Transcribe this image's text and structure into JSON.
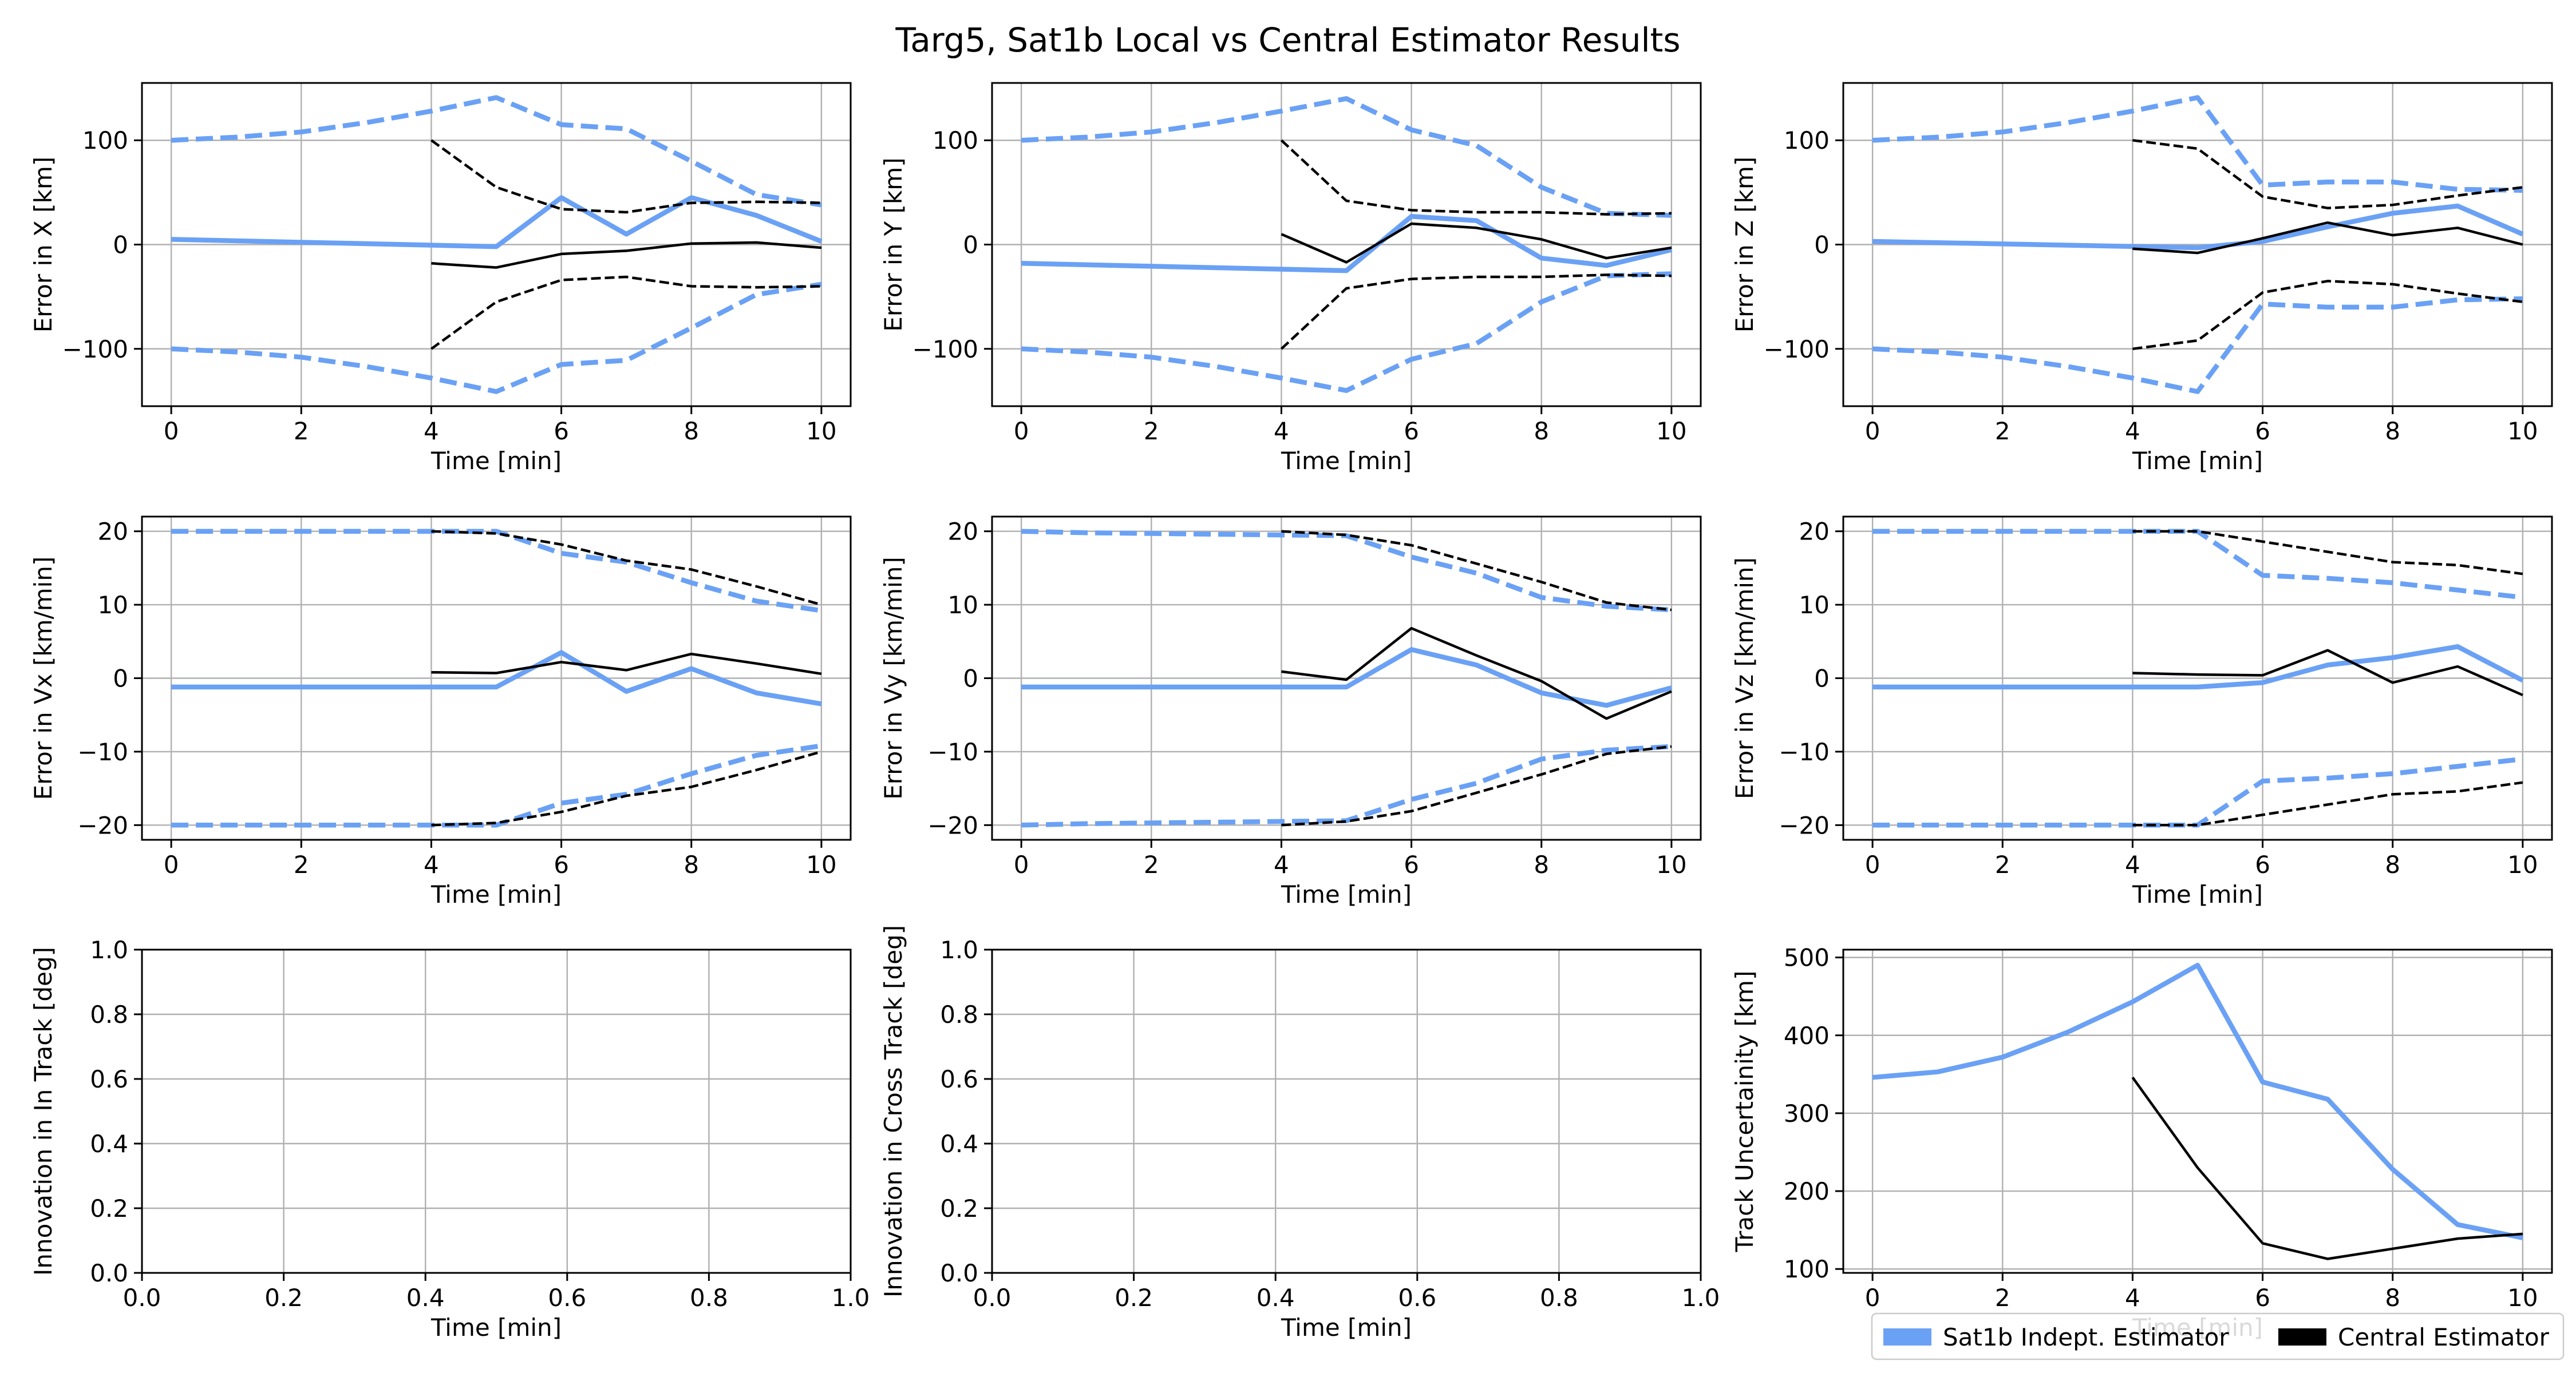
{
  "figure": {
    "title": "Targ5, Sat1b Local vs Central Estimator Results"
  },
  "legend": {
    "placement": "lower-right",
    "entries": [
      {
        "label": "Sat1b Indept. Estimator",
        "color": "#6aa1f5"
      },
      {
        "label": "Central Estimator",
        "color": "#000000"
      }
    ]
  },
  "colors": {
    "local": "#6aa1f5",
    "central": "#000000",
    "grid": "#b0b0b0"
  },
  "chart_data": [
    {
      "type": "line",
      "xlabel": "Time [min]",
      "ylabel": "Error in X [km]",
      "xlim": [
        -0.45,
        10.45
      ],
      "ylim": [
        -155,
        155
      ],
      "xticks": [
        0,
        2,
        4,
        6,
        8,
        10
      ],
      "yticks": [
        -100,
        0,
        100
      ],
      "grid": true,
      "series": [
        {
          "role": "local",
          "style": "solid",
          "x": [
            0,
            5,
            6,
            7,
            8,
            9,
            10
          ],
          "y": [
            5,
            -2,
            45,
            10,
            45,
            28,
            3
          ]
        },
        {
          "role": "local",
          "style": "dashed",
          "x": [
            0,
            1,
            2,
            3,
            4,
            5,
            6,
            7,
            8,
            9,
            10
          ],
          "y": [
            100,
            103,
            108,
            117,
            128,
            141,
            115,
            111,
            80,
            48,
            38
          ]
        },
        {
          "role": "local",
          "style": "dashed",
          "x": [
            0,
            1,
            2,
            3,
            4,
            5,
            6,
            7,
            8,
            9,
            10
          ],
          "y": [
            -100,
            -103,
            -108,
            -117,
            -128,
            -141,
            -115,
            -111,
            -80,
            -48,
            -38
          ]
        },
        {
          "role": "central",
          "style": "solid",
          "x": [
            4,
            5,
            6,
            7,
            8,
            9,
            10
          ],
          "y": [
            -18,
            -22,
            -9,
            -6,
            1,
            2,
            -3
          ]
        },
        {
          "role": "central",
          "style": "dashed",
          "x": [
            4,
            5,
            6,
            7,
            8,
            9,
            10
          ],
          "y": [
            100,
            55,
            34,
            31,
            40,
            41,
            40
          ]
        },
        {
          "role": "central",
          "style": "dashed",
          "x": [
            4,
            5,
            6,
            7,
            8,
            9,
            10
          ],
          "y": [
            -100,
            -55,
            -34,
            -31,
            -40,
            -41,
            -40
          ]
        }
      ]
    },
    {
      "type": "line",
      "xlabel": "Time [min]",
      "ylabel": "Error in Y [km]",
      "xlim": [
        -0.45,
        10.45
      ],
      "ylim": [
        -155,
        155
      ],
      "xticks": [
        0,
        2,
        4,
        6,
        8,
        10
      ],
      "yticks": [
        -100,
        0,
        100
      ],
      "grid": true,
      "series": [
        {
          "role": "local",
          "style": "solid",
          "x": [
            0,
            5,
            6,
            7,
            8,
            9,
            10
          ],
          "y": [
            -18,
            -25,
            27,
            23,
            -13,
            -20,
            -5
          ]
        },
        {
          "role": "local",
          "style": "dashed",
          "x": [
            0,
            1,
            2,
            3,
            4,
            5,
            6,
            7,
            8,
            9,
            10
          ],
          "y": [
            100,
            103,
            108,
            117,
            128,
            140,
            110,
            95,
            55,
            30,
            28
          ]
        },
        {
          "role": "local",
          "style": "dashed",
          "x": [
            0,
            1,
            2,
            3,
            4,
            5,
            6,
            7,
            8,
            9,
            10
          ],
          "y": [
            -100,
            -103,
            -108,
            -117,
            -128,
            -140,
            -110,
            -95,
            -55,
            -30,
            -28
          ]
        },
        {
          "role": "central",
          "style": "solid",
          "x": [
            4,
            5,
            6,
            7,
            8,
            9,
            10
          ],
          "y": [
            10,
            -17,
            20,
            16,
            5,
            -13,
            -3
          ]
        },
        {
          "role": "central",
          "style": "dashed",
          "x": [
            4,
            5,
            6,
            7,
            8,
            9,
            10
          ],
          "y": [
            100,
            42,
            33,
            31,
            31,
            29,
            30
          ]
        },
        {
          "role": "central",
          "style": "dashed",
          "x": [
            4,
            5,
            6,
            7,
            8,
            9,
            10
          ],
          "y": [
            -100,
            -42,
            -33,
            -31,
            -31,
            -29,
            -30
          ]
        }
      ]
    },
    {
      "type": "line",
      "xlabel": "Time [min]",
      "ylabel": "Error in Z [km]",
      "xlim": [
        -0.45,
        10.45
      ],
      "ylim": [
        -155,
        155
      ],
      "xticks": [
        0,
        2,
        4,
        6,
        8,
        10
      ],
      "yticks": [
        -100,
        0,
        100
      ],
      "grid": true,
      "series": [
        {
          "role": "local",
          "style": "solid",
          "x": [
            0,
            5,
            6,
            7,
            8,
            9,
            10
          ],
          "y": [
            3,
            -3,
            3,
            17,
            30,
            37,
            10
          ]
        },
        {
          "role": "local",
          "style": "dashed",
          "x": [
            0,
            1,
            2,
            3,
            4,
            5,
            6,
            7,
            8,
            9,
            10
          ],
          "y": [
            100,
            103,
            108,
            117,
            128,
            141,
            57,
            60,
            60,
            53,
            52
          ]
        },
        {
          "role": "local",
          "style": "dashed",
          "x": [
            0,
            1,
            2,
            3,
            4,
            5,
            6,
            7,
            8,
            9,
            10
          ],
          "y": [
            -100,
            -103,
            -108,
            -117,
            -128,
            -141,
            -57,
            -60,
            -60,
            -53,
            -52
          ]
        },
        {
          "role": "central",
          "style": "solid",
          "x": [
            4,
            5,
            6,
            7,
            8,
            9,
            10
          ],
          "y": [
            -4,
            -8,
            6,
            21,
            9,
            16,
            0
          ]
        },
        {
          "role": "central",
          "style": "dashed",
          "x": [
            4,
            5,
            6,
            7,
            8,
            9,
            10
          ],
          "y": [
            100,
            92,
            46,
            35,
            38,
            47,
            55
          ]
        },
        {
          "role": "central",
          "style": "dashed",
          "x": [
            4,
            5,
            6,
            7,
            8,
            9,
            10
          ],
          "y": [
            -100,
            -92,
            -46,
            -35,
            -38,
            -47,
            -55
          ]
        }
      ]
    },
    {
      "type": "line",
      "xlabel": "Time [min]",
      "ylabel": "Error in Vx [km/min]",
      "xlim": [
        -0.45,
        10.45
      ],
      "ylim": [
        -22,
        22
      ],
      "xticks": [
        0,
        2,
        4,
        6,
        8,
        10
      ],
      "yticks": [
        -20,
        -10,
        0,
        10,
        20
      ],
      "grid": true,
      "series": [
        {
          "role": "local",
          "style": "solid",
          "x": [
            0,
            5,
            6,
            7,
            8,
            9,
            10
          ],
          "y": [
            -1.2,
            -1.2,
            3.5,
            -1.8,
            1.3,
            -2.0,
            -3.5
          ]
        },
        {
          "role": "local",
          "style": "dashed",
          "x": [
            0,
            1,
            2,
            3,
            4,
            5,
            6,
            7,
            8,
            9,
            10
          ],
          "y": [
            20,
            20,
            20,
            20,
            20,
            20,
            17,
            15.8,
            13,
            10.5,
            9.2
          ]
        },
        {
          "role": "local",
          "style": "dashed",
          "x": [
            0,
            1,
            2,
            3,
            4,
            5,
            6,
            7,
            8,
            9,
            10
          ],
          "y": [
            -20,
            -20,
            -20,
            -20,
            -20,
            -20,
            -17,
            -15.8,
            -13,
            -10.5,
            -9.2
          ]
        },
        {
          "role": "central",
          "style": "solid",
          "x": [
            4,
            5,
            6,
            7,
            8,
            9,
            10
          ],
          "y": [
            0.8,
            0.7,
            2.2,
            1.1,
            3.3,
            2.0,
            0.6
          ]
        },
        {
          "role": "central",
          "style": "dashed",
          "x": [
            4,
            5,
            6,
            7,
            8,
            9,
            10
          ],
          "y": [
            20,
            19.7,
            18.2,
            16,
            14.8,
            12.5,
            10
          ]
        },
        {
          "role": "central",
          "style": "dashed",
          "x": [
            4,
            5,
            6,
            7,
            8,
            9,
            10
          ],
          "y": [
            -20,
            -19.7,
            -18.2,
            -16,
            -14.8,
            -12.5,
            -10
          ]
        }
      ]
    },
    {
      "type": "line",
      "xlabel": "Time [min]",
      "ylabel": "Error in Vy [km/min]",
      "xlim": [
        -0.45,
        10.45
      ],
      "ylim": [
        -22,
        22
      ],
      "xticks": [
        0,
        2,
        4,
        6,
        8,
        10
      ],
      "yticks": [
        -20,
        -10,
        0,
        10,
        20
      ],
      "grid": true,
      "series": [
        {
          "role": "local",
          "style": "solid",
          "x": [
            0,
            5,
            6,
            7,
            8,
            9,
            10
          ],
          "y": [
            -1.2,
            -1.2,
            3.9,
            1.8,
            -2.0,
            -3.7,
            -1.3
          ]
        },
        {
          "role": "local",
          "style": "dashed",
          "x": [
            0,
            1,
            2,
            3,
            4,
            5,
            6,
            7,
            8,
            9,
            10
          ],
          "y": [
            20,
            19.8,
            19.7,
            19.6,
            19.5,
            19.4,
            16.5,
            14.3,
            11,
            9.8,
            9.3
          ]
        },
        {
          "role": "local",
          "style": "dashed",
          "x": [
            0,
            1,
            2,
            3,
            4,
            5,
            6,
            7,
            8,
            9,
            10
          ],
          "y": [
            -20,
            -19.8,
            -19.7,
            -19.6,
            -19.5,
            -19.4,
            -16.5,
            -14.3,
            -11,
            -9.8,
            -9.3
          ]
        },
        {
          "role": "central",
          "style": "solid",
          "x": [
            4,
            5,
            6,
            7,
            8,
            9,
            10
          ],
          "y": [
            0.9,
            -0.2,
            6.8,
            3.1,
            -0.4,
            -5.5,
            -1.8
          ]
        },
        {
          "role": "central",
          "style": "dashed",
          "x": [
            4,
            5,
            6,
            7,
            8,
            9,
            10
          ],
          "y": [
            20,
            19.5,
            18.1,
            15.6,
            13.1,
            10.3,
            9.3
          ]
        },
        {
          "role": "central",
          "style": "dashed",
          "x": [
            4,
            5,
            6,
            7,
            8,
            9,
            10
          ],
          "y": [
            -20,
            -19.5,
            -18.1,
            -15.6,
            -13.1,
            -10.3,
            -9.3
          ]
        }
      ]
    },
    {
      "type": "line",
      "xlabel": "Time [min]",
      "ylabel": "Error in Vz [km/min]",
      "xlim": [
        -0.45,
        10.45
      ],
      "ylim": [
        -22,
        22
      ],
      "xticks": [
        0,
        2,
        4,
        6,
        8,
        10
      ],
      "yticks": [
        -20,
        -10,
        0,
        10,
        20
      ],
      "grid": true,
      "series": [
        {
          "role": "local",
          "style": "solid",
          "x": [
            0,
            5,
            6,
            7,
            8,
            9,
            10
          ],
          "y": [
            -1.2,
            -1.2,
            -0.6,
            1.8,
            2.8,
            4.3,
            -0.3
          ]
        },
        {
          "role": "local",
          "style": "dashed",
          "x": [
            0,
            1,
            2,
            3,
            4,
            5,
            6,
            7,
            8,
            9,
            10
          ],
          "y": [
            20,
            20,
            20,
            20,
            20,
            20,
            14,
            13.6,
            13,
            12,
            11
          ]
        },
        {
          "role": "local",
          "style": "dashed",
          "x": [
            0,
            1,
            2,
            3,
            4,
            5,
            6,
            7,
            8,
            9,
            10
          ],
          "y": [
            -20,
            -20,
            -20,
            -20,
            -20,
            -20,
            -14,
            -13.6,
            -13,
            -12,
            -11
          ]
        },
        {
          "role": "central",
          "style": "solid",
          "x": [
            4,
            5,
            6,
            7,
            8,
            9,
            10
          ],
          "y": [
            0.7,
            0.5,
            0.4,
            3.8,
            -0.6,
            1.6,
            -2.3
          ]
        },
        {
          "role": "central",
          "style": "dashed",
          "x": [
            4,
            5,
            6,
            7,
            8,
            9,
            10
          ],
          "y": [
            20,
            20,
            18.6,
            17.2,
            15.8,
            15.4,
            14.2
          ]
        },
        {
          "role": "central",
          "style": "dashed",
          "x": [
            4,
            5,
            6,
            7,
            8,
            9,
            10
          ],
          "y": [
            -20,
            -20,
            -18.6,
            -17.2,
            -15.8,
            -15.4,
            -14.2
          ]
        }
      ]
    },
    {
      "type": "line",
      "xlabel": "Time [min]",
      "ylabel": "Innovation in In Track [deg]",
      "xlim": [
        0,
        1
      ],
      "ylim": [
        0,
        1
      ],
      "xticks": [
        0.0,
        0.2,
        0.4,
        0.6,
        0.8,
        1.0
      ],
      "yticks": [
        0.0,
        0.2,
        0.4,
        0.6,
        0.8,
        1.0
      ],
      "tick_decimals": 1,
      "grid": true,
      "series": []
    },
    {
      "type": "line",
      "xlabel": "Time [min]",
      "ylabel": "Innovation in Cross Track [deg]",
      "xlim": [
        0,
        1
      ],
      "ylim": [
        0,
        1
      ],
      "xticks": [
        0.0,
        0.2,
        0.4,
        0.6,
        0.8,
        1.0
      ],
      "yticks": [
        0.0,
        0.2,
        0.4,
        0.6,
        0.8,
        1.0
      ],
      "tick_decimals": 1,
      "grid": true,
      "series": []
    },
    {
      "type": "line",
      "xlabel": "Time [min]",
      "ylabel": "Track Uncertainity [km]",
      "xlim": [
        -0.45,
        10.45
      ],
      "ylim": [
        95,
        510
      ],
      "xticks": [
        0,
        2,
        4,
        6,
        8,
        10
      ],
      "yticks": [
        100,
        200,
        300,
        400,
        500
      ],
      "grid": true,
      "series": [
        {
          "role": "local",
          "style": "solid",
          "x": [
            0,
            1,
            2,
            3,
            4,
            5,
            6,
            7,
            8,
            9,
            10
          ],
          "y": [
            346,
            353,
            372,
            404,
            443,
            490,
            340,
            318,
            228,
            157,
            140
          ]
        },
        {
          "role": "central",
          "style": "solid",
          "x": [
            4,
            5,
            6,
            7,
            8,
            9,
            10
          ],
          "y": [
            346,
            230,
            133,
            113,
            126,
            139,
            145
          ]
        }
      ]
    }
  ]
}
